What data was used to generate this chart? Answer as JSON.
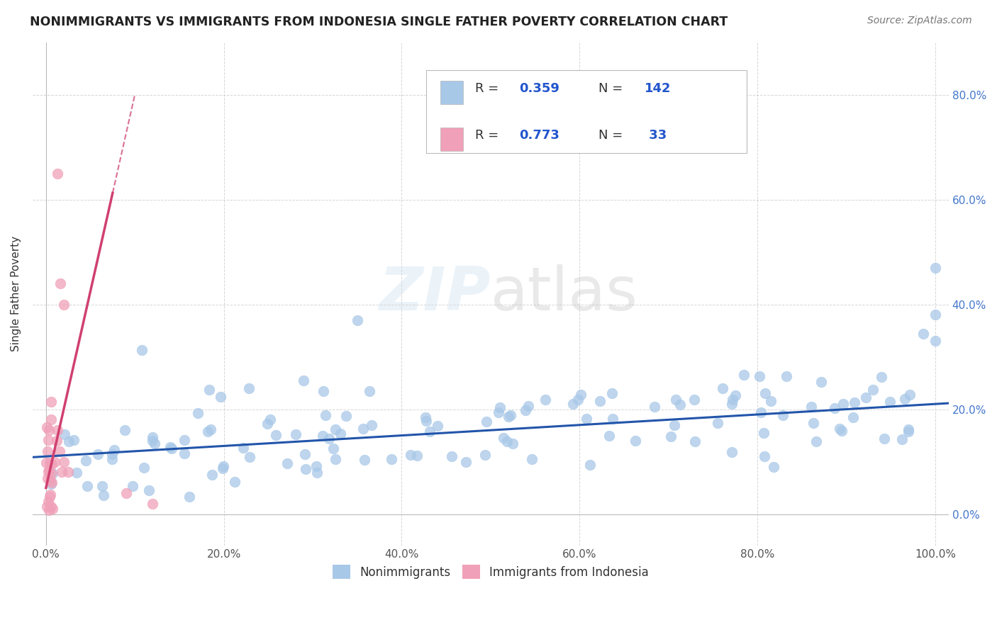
{
  "title": "NONIMMIGRANTS VS IMMIGRANTS FROM INDONESIA SINGLE FATHER POVERTY CORRELATION CHART",
  "source": "Source: ZipAtlas.com",
  "ylabel": "Single Father Poverty",
  "watermark": "ZIPatlas",
  "nonimmigrant_color": "#a8c8e8",
  "immigrant_color": "#f0a0b8",
  "nonimmigrant_line_color": "#2255aa",
  "immigrant_line_color": "#d04070",
  "background_color": "#ffffff",
  "grid_color": "#bbbbbb",
  "xlim": [
    -0.015,
    1.015
  ],
  "ylim": [
    -0.06,
    0.9
  ],
  "ytick_positions": [
    0.0,
    0.2,
    0.4,
    0.6,
    0.8
  ],
  "ytick_labels": [
    "0.0%",
    "20.0%",
    "40.0%",
    "60.0%",
    "80.0%"
  ],
  "xtick_positions": [
    0.0,
    0.2,
    0.4,
    0.6,
    0.8,
    1.0
  ],
  "xtick_labels": [
    "0.0%",
    "20.0%",
    "40.0%",
    "60.0%",
    "80.0%",
    "100.0%"
  ]
}
